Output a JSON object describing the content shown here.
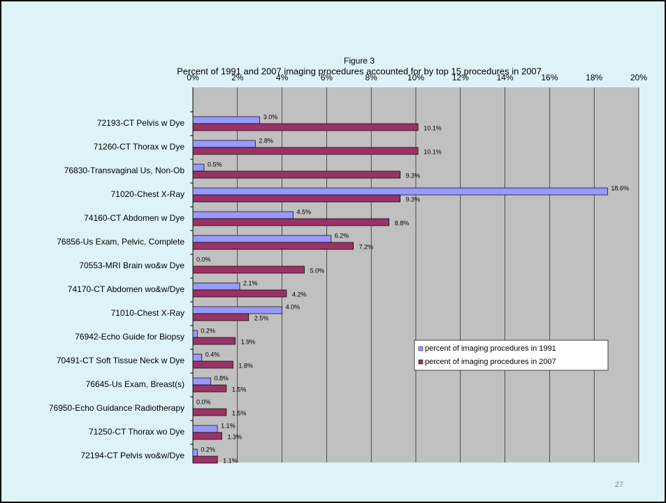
{
  "chart_data": {
    "type": "bar",
    "orientation": "horizontal",
    "title": "Figure 3",
    "subtitle": "Percent of 1991 and 2007 imaging procedures accounted for by top 15 procedures in 2007",
    "categories": [
      "72193-CT Pelvis w Dye",
      "71260-CT Thorax w Dye",
      "76830-Transvaginal Us, Non-Ob",
      "71020-Chest X-Ray",
      "74160-CT Abdomen w Dye",
      "76856-Us Exam, Pelvic, Complete",
      "70553-MRI Brain wo&w Dye",
      "74170-CT Abdomen wo&w/Dye",
      "71010-Chest X-Ray",
      "76942-Echo Guide for Biopsy",
      "70491-CT Soft Tissue Neck w Dye",
      "76645-Us Exam, Breast(s)",
      "76950-Echo Guidance Radiotherapy",
      "71250-CT Thorax wo Dye",
      "72194-CT Pelvis wo&w/Dye"
    ],
    "series": [
      {
        "name": "percent of imaging procedures in 1991",
        "color": "#9999ff",
        "values": [
          3.0,
          2.8,
          0.5,
          18.6,
          4.5,
          6.2,
          0.0,
          2.1,
          4.0,
          0.2,
          0.4,
          0.8,
          0.0,
          1.1,
          0.2
        ],
        "value_labels": [
          "3.0%",
          "2.8%",
          "0.5%",
          "18.6%",
          "4.5%",
          "6.2%",
          "0.0%",
          "2.1%",
          "4.0%",
          "0.2%",
          "0.4%",
          "0.8%",
          "0.0%",
          "1.1%",
          "0.2%"
        ]
      },
      {
        "name": "percent of imaging procedures in 2007",
        "color": "#993366",
        "values": [
          10.1,
          10.1,
          9.3,
          9.3,
          8.8,
          7.2,
          5.0,
          4.2,
          2.5,
          1.9,
          1.8,
          1.5,
          1.5,
          1.3,
          1.1
        ],
        "value_labels": [
          "10.1%",
          "10.1%",
          "9.3%",
          "9.3%",
          "8.8%",
          "7.2%",
          "5.0%",
          "4.2%",
          "2.5%",
          "1.9%",
          "1.8%",
          "1.5%",
          "1.5%",
          "1.3%",
          "1.1%"
        ]
      }
    ],
    "xlim": [
      0,
      20
    ],
    "xticks": [
      {
        "value": 0,
        "label": "0%"
      },
      {
        "value": 2,
        "label": "2%"
      },
      {
        "value": 4,
        "label": "4%"
      },
      {
        "value": 6,
        "label": "6%"
      },
      {
        "value": 8,
        "label": "8%"
      },
      {
        "value": 10,
        "label": "10%"
      },
      {
        "value": 12,
        "label": "12%"
      },
      {
        "value": 14,
        "label": "14%"
      },
      {
        "value": 16,
        "label": "16%"
      },
      {
        "value": 18,
        "label": "18%"
      },
      {
        "value": 20,
        "label": "20%"
      }
    ],
    "grid": true,
    "plot_background": "#c0c0c0",
    "legend": "lower right"
  },
  "page_number": "27"
}
